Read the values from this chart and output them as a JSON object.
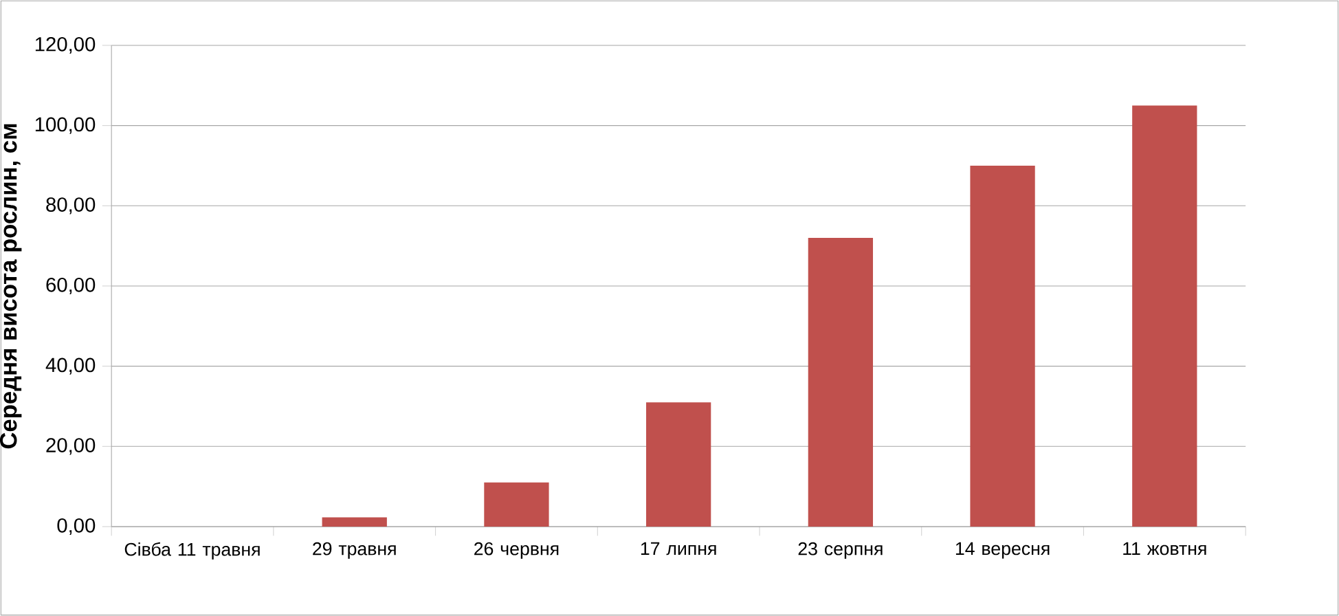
{
  "chart_data": {
    "type": "bar",
    "ylabel": "Середня висота рослин, см",
    "categories": [
      "Сівба 11 травня",
      "29 травня",
      "26 червня",
      "17 липня",
      "23 серпня",
      "14 вересня",
      "11 жовтня"
    ],
    "values": [
      0,
      2.3,
      11,
      31,
      72,
      90,
      105
    ],
    "color": "#c0504d",
    "ylim": [
      0,
      120
    ],
    "yticks": [
      {
        "value": 0,
        "label": "0,00"
      },
      {
        "value": 20,
        "label": "20,00"
      },
      {
        "value": 40,
        "label": "40,00"
      },
      {
        "value": 60,
        "label": "60,00"
      },
      {
        "value": 80,
        "label": "80,00"
      },
      {
        "value": 100,
        "label": "100,00"
      },
      {
        "value": 120,
        "label": "120,00"
      }
    ],
    "grid": "y"
  }
}
